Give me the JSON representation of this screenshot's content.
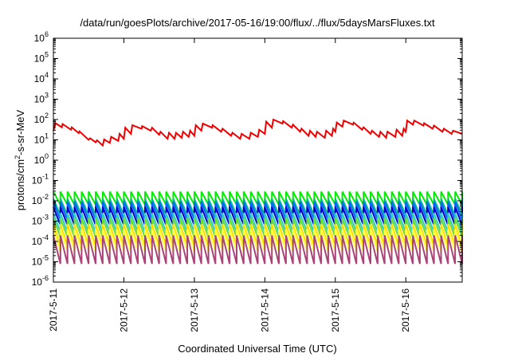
{
  "chart_data": {
    "type": "line",
    "title": "/data/run/goesPlots/archive/2017-05-16/19:00/flux/../flux/5daysMarsFluxes.txt",
    "xlabel": "Coordinated Universal Time (UTC)",
    "ylabel_parts": {
      "prefix": "protons/cm",
      "sup": "2",
      "suffix": "-s-sr-MeV"
    },
    "yscale": "log",
    "ylim_exponents": [
      -6,
      6
    ],
    "y_tick_base": "10",
    "y_tick_exponents": [
      "6",
      "5",
      "4",
      "3",
      "2",
      "1",
      "0",
      "-1",
      "-2",
      "-3",
      "-4",
      "-5",
      "-6"
    ],
    "x_ticks": [
      "2017-5-11",
      "2017-5-12",
      "2017-5-13",
      "2017-5-14",
      "2017-5-15",
      "2017-5-16"
    ],
    "x_tick_positions_days": [
      0,
      1,
      2,
      3,
      4,
      5
    ],
    "xlim_days": [
      0,
      5.8
    ],
    "grid": false,
    "legend": "none",
    "series": [
      {
        "color": "#ee0000",
        "points_days_log10": [
          [
            0.0,
            1.45
          ],
          [
            0.03,
            1.82
          ],
          [
            0.12,
            1.62
          ],
          [
            0.13,
            1.78
          ],
          [
            0.25,
            1.5
          ],
          [
            0.26,
            1.62
          ],
          [
            0.36,
            1.33
          ],
          [
            0.37,
            1.42
          ],
          [
            0.5,
            1.0
          ],
          [
            0.52,
            1.08
          ],
          [
            0.6,
            0.88
          ],
          [
            0.62,
            0.98
          ],
          [
            0.7,
            0.72
          ],
          [
            0.72,
            1.02
          ],
          [
            0.8,
            0.85
          ],
          [
            0.82,
            1.15
          ],
          [
            0.92,
            0.95
          ],
          [
            0.94,
            1.3
          ],
          [
            1.0,
            1.05
          ],
          [
            1.02,
            1.6
          ],
          [
            1.1,
            1.3
          ],
          [
            1.12,
            1.72
          ],
          [
            1.25,
            1.55
          ],
          [
            1.26,
            1.68
          ],
          [
            1.38,
            1.45
          ],
          [
            1.4,
            1.6
          ],
          [
            1.5,
            1.25
          ],
          [
            1.52,
            1.4
          ],
          [
            1.62,
            1.05
          ],
          [
            1.64,
            1.35
          ],
          [
            1.72,
            1.05
          ],
          [
            1.74,
            1.35
          ],
          [
            1.82,
            1.1
          ],
          [
            1.84,
            1.4
          ],
          [
            1.92,
            1.15
          ],
          [
            1.94,
            1.45
          ],
          [
            2.0,
            1.2
          ],
          [
            2.02,
            1.72
          ],
          [
            2.1,
            1.45
          ],
          [
            2.12,
            1.8
          ],
          [
            2.25,
            1.6
          ],
          [
            2.26,
            1.72
          ],
          [
            2.38,
            1.4
          ],
          [
            2.4,
            1.55
          ],
          [
            2.52,
            1.2
          ],
          [
            2.54,
            1.35
          ],
          [
            2.65,
            1.05
          ],
          [
            2.67,
            1.3
          ],
          [
            2.78,
            1.05
          ],
          [
            2.8,
            1.35
          ],
          [
            2.9,
            1.15
          ],
          [
            2.92,
            1.5
          ],
          [
            3.0,
            1.3
          ],
          [
            3.02,
            1.9
          ],
          [
            3.1,
            1.6
          ],
          [
            3.12,
            2.0
          ],
          [
            3.25,
            1.8
          ],
          [
            3.26,
            1.92
          ],
          [
            3.38,
            1.6
          ],
          [
            3.4,
            1.75
          ],
          [
            3.5,
            1.4
          ],
          [
            3.52,
            1.55
          ],
          [
            3.62,
            1.2
          ],
          [
            3.64,
            1.45
          ],
          [
            3.72,
            1.15
          ],
          [
            3.74,
            1.4
          ],
          [
            3.85,
            1.1
          ],
          [
            3.87,
            1.45
          ],
          [
            3.95,
            1.2
          ],
          [
            3.97,
            1.55
          ],
          [
            4.0,
            1.4
          ],
          [
            4.02,
            1.85
          ],
          [
            4.1,
            1.65
          ],
          [
            4.12,
            1.95
          ],
          [
            4.25,
            1.75
          ],
          [
            4.26,
            1.85
          ],
          [
            4.38,
            1.5
          ],
          [
            4.4,
            1.62
          ],
          [
            4.5,
            1.3
          ],
          [
            4.52,
            1.45
          ],
          [
            4.62,
            1.15
          ],
          [
            4.64,
            1.4
          ],
          [
            4.72,
            1.1
          ],
          [
            4.74,
            1.4
          ],
          [
            4.85,
            1.15
          ],
          [
            4.87,
            1.5
          ],
          [
            4.95,
            1.2
          ],
          [
            4.97,
            1.55
          ],
          [
            5.0,
            1.4
          ],
          [
            5.02,
            1.95
          ],
          [
            5.1,
            1.75
          ],
          [
            5.12,
            1.95
          ],
          [
            5.25,
            1.7
          ],
          [
            5.26,
            1.82
          ],
          [
            5.38,
            1.55
          ],
          [
            5.4,
            1.7
          ],
          [
            5.52,
            1.4
          ],
          [
            5.54,
            1.55
          ],
          [
            5.65,
            1.3
          ],
          [
            5.67,
            1.45
          ],
          [
            5.8,
            1.3
          ]
        ]
      },
      {
        "color": "#00ee00",
        "periodic": {
          "top_log10": -1.55,
          "bottom_log10": -2.2,
          "period_days": 0.1
        }
      },
      {
        "color": "#00bb88",
        "periodic": {
          "top_log10": -1.9,
          "bottom_log10": -2.7,
          "period_days": 0.1
        }
      },
      {
        "color": "#0066ff",
        "periodic": {
          "top_log10": -2.05,
          "bottom_log10": -2.95,
          "period_days": 0.1
        }
      },
      {
        "color": "#0000cc",
        "periodic": {
          "top_log10": -2.3,
          "bottom_log10": -3.2,
          "period_days": 0.1
        }
      },
      {
        "color": "#33cccc",
        "periodic": {
          "top_log10": -2.6,
          "bottom_log10": -3.55,
          "period_days": 0.1
        }
      },
      {
        "color": "#66dd33",
        "periodic": {
          "top_log10": -2.85,
          "bottom_log10": -3.8,
          "period_days": 0.1
        }
      },
      {
        "color": "#ffdd00",
        "periodic": {
          "top_log10": -3.15,
          "bottom_log10": -4.2,
          "period_days": 0.1
        }
      },
      {
        "color": "#ffff44",
        "periodic": {
          "top_log10": -3.4,
          "bottom_log10": -4.5,
          "period_days": 0.1
        }
      },
      {
        "color": "#aa4477",
        "periodic": {
          "top_log10": -3.7,
          "bottom_log10": -5.1,
          "period_days": 0.1
        }
      }
    ]
  }
}
